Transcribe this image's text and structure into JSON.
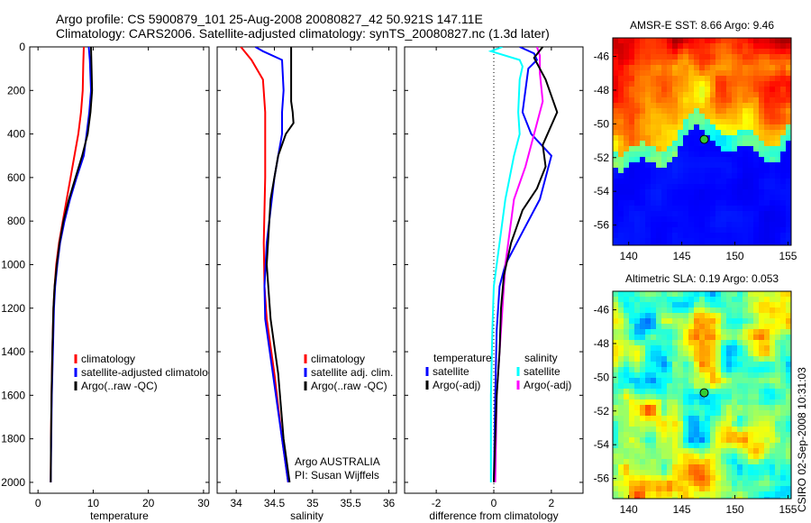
{
  "header": {
    "line1": "Argo profile: CS 5900879_101 25-Aug-2008 20080827_42 50.921S 147.11E",
    "line2": "Climatology: CARS2006. Satellite-adjusted climatology: synTS_20080827.nc (1.3d later)"
  },
  "colors": {
    "climatology": "#ff0000",
    "satellite": "#0000ff",
    "argo": "#000000",
    "temp_sat_diff": "#00ffff",
    "sal_argo_diff": "#ff00ff",
    "map_marker": "#33cc33"
  },
  "chart_data": [
    {
      "type": "line",
      "name": "temperature-panel",
      "xlabel": "temperature",
      "ylabel": "",
      "xlim": [
        -1.5,
        31
      ],
      "ylim": [
        2050,
        0
      ],
      "xticks": [
        0,
        10,
        20,
        30
      ],
      "yticks": [
        0,
        200,
        400,
        600,
        800,
        1000,
        1200,
        1400,
        1600,
        1800,
        2000
      ],
      "legend": {
        "placement": "lower-right",
        "entries": [
          "climatology",
          "satellite-adjusted climatology",
          "Argo(..raw -QC)"
        ]
      },
      "series": [
        {
          "name": "climatology",
          "color": "#ff0000",
          "points": [
            [
              8.3,
              0
            ],
            [
              8.2,
              80
            ],
            [
              8.1,
              200
            ],
            [
              7.8,
              300
            ],
            [
              7.3,
              400
            ],
            [
              6.6,
              500
            ],
            [
              5.9,
              600
            ],
            [
              5.2,
              700
            ],
            [
              4.5,
              800
            ],
            [
              3.8,
              900
            ],
            [
              3.3,
              1000
            ],
            [
              3.0,
              1100
            ],
            [
              2.8,
              1200
            ],
            [
              2.6,
              1400
            ],
            [
              2.45,
              1600
            ],
            [
              2.35,
              1800
            ],
            [
              2.3,
              2000
            ]
          ]
        },
        {
          "name": "satellite-adjusted climatology",
          "color": "#0000ff",
          "points": [
            [
              9.2,
              0
            ],
            [
              9.4,
              60
            ],
            [
              9.6,
              200
            ],
            [
              9.3,
              300
            ],
            [
              8.8,
              400
            ],
            [
              8.3,
              500
            ],
            [
              7.0,
              600
            ],
            [
              5.8,
              700
            ],
            [
              4.8,
              800
            ],
            [
              4.0,
              900
            ],
            [
              3.5,
              1000
            ],
            [
              3.1,
              1100
            ],
            [
              2.9,
              1200
            ],
            [
              2.7,
              1400
            ],
            [
              2.5,
              1600
            ],
            [
              2.4,
              1800
            ],
            [
              2.3,
              2000
            ]
          ]
        },
        {
          "name": "Argo(..raw -QC)",
          "color": "#000000",
          "points": [
            [
              9.6,
              0
            ],
            [
              9.7,
              100
            ],
            [
              9.8,
              200
            ],
            [
              9.5,
              300
            ],
            [
              9.0,
              400
            ],
            [
              8.0,
              500
            ],
            [
              6.8,
              600
            ],
            [
              5.6,
              700
            ],
            [
              4.6,
              800
            ],
            [
              3.9,
              900
            ],
            [
              3.4,
              1000
            ],
            [
              3.0,
              1100
            ],
            [
              2.8,
              1200
            ],
            [
              2.6,
              1400
            ],
            [
              2.45,
              1600
            ],
            [
              2.35,
              1800
            ],
            [
              2.3,
              2000
            ]
          ]
        }
      ]
    },
    {
      "type": "line",
      "name": "salinity-panel",
      "xlabel": "salinity",
      "ylabel": "",
      "xlim": [
        33.75,
        36.1
      ],
      "ylim": [
        2050,
        0
      ],
      "xticks": [
        34,
        34.5,
        35,
        35.5,
        36
      ],
      "legend": {
        "placement": "lower-right",
        "entries": [
          "climatology",
          "satellite adj. clim.",
          "Argo(..raw -QC)"
        ]
      },
      "annotation": [
        "Argo AUSTRALIA",
        "PI: Susan Wijffels"
      ],
      "series": [
        {
          "name": "climatology",
          "color": "#ff0000",
          "points": [
            [
              34.06,
              0
            ],
            [
              34.2,
              60
            ],
            [
              34.35,
              150
            ],
            [
              34.38,
              300
            ],
            [
              34.38,
              600
            ],
            [
              34.36,
              900
            ],
            [
              34.37,
              1100
            ],
            [
              34.4,
              1250
            ],
            [
              34.5,
              1500
            ],
            [
              34.6,
              1800
            ],
            [
              34.68,
              2000
            ]
          ]
        },
        {
          "name": "satellite adj. clim.",
          "color": "#0000ff",
          "points": [
            [
              34.25,
              0
            ],
            [
              34.35,
              20
            ],
            [
              34.6,
              60
            ],
            [
              34.62,
              200
            ],
            [
              34.6,
              300
            ],
            [
              34.6,
              400
            ],
            [
              34.5,
              600
            ],
            [
              34.4,
              900
            ],
            [
              34.37,
              1100
            ],
            [
              34.38,
              1250
            ],
            [
              34.48,
              1500
            ],
            [
              34.6,
              1800
            ],
            [
              34.68,
              2000
            ]
          ]
        },
        {
          "name": "Argo(..raw -QC)",
          "color": "#000000",
          "points": [
            [
              34.72,
              0
            ],
            [
              34.72,
              100
            ],
            [
              34.72,
              250
            ],
            [
              34.74,
              300
            ],
            [
              34.75,
              350
            ],
            [
              34.65,
              400
            ],
            [
              34.55,
              500
            ],
            [
              34.45,
              700
            ],
            [
              34.4,
              1000
            ],
            [
              34.45,
              1250
            ],
            [
              34.55,
              1500
            ],
            [
              34.62,
              1800
            ],
            [
              34.7,
              2000
            ]
          ]
        }
      ]
    },
    {
      "type": "line",
      "name": "difference-panel",
      "xlabel": "difference from climatology",
      "ylabel": "",
      "xlim": [
        -3.1,
        3.1
      ],
      "ylim": [
        2050,
        0
      ],
      "xticks": [
        -2,
        0,
        2
      ],
      "zero_line": "dotted",
      "legend": {
        "placement": "lower-right",
        "groups": [
          {
            "header": "temperature",
            "entries": [
              "satellite",
              "Argo(-adj)"
            ]
          },
          {
            "header": "salinity",
            "entries": [
              "satellite",
              "Argo(-adj)"
            ]
          }
        ]
      },
      "series": [
        {
          "name": "temperature satellite",
          "color": "#00ffff",
          "points": [
            [
              0.3,
              0
            ],
            [
              -0.1,
              20
            ],
            [
              0.9,
              60
            ],
            [
              1.0,
              90
            ],
            [
              0.9,
              150
            ],
            [
              0.85,
              300
            ],
            [
              0.9,
              400
            ],
            [
              0.7,
              500
            ],
            [
              0.55,
              600
            ],
            [
              0.4,
              700
            ],
            [
              0.2,
              900
            ],
            [
              0.0,
              1100
            ],
            [
              -0.05,
              1300
            ],
            [
              -0.1,
              1600
            ],
            [
              -0.1,
              2000
            ]
          ]
        },
        {
          "name": "temperature Argo(-adj)",
          "color": "#0000ff",
          "points": [
            [
              0.9,
              0
            ],
            [
              1.4,
              30
            ],
            [
              1.5,
              60
            ],
            [
              1.2,
              100
            ],
            [
              1.0,
              300
            ],
            [
              1.3,
              400
            ],
            [
              2.0,
              500
            ],
            [
              1.6,
              700
            ],
            [
              1.0,
              850
            ],
            [
              0.4,
              1000
            ],
            [
              0.2,
              1100
            ],
            [
              0.1,
              1300
            ],
            [
              0.05,
              1600
            ],
            [
              0.0,
              2000
            ]
          ]
        },
        {
          "name": "salinity satellite",
          "color": "#ff00ff",
          "points": [
            [
              1.5,
              0
            ],
            [
              1.6,
              40
            ],
            [
              1.6,
              120
            ],
            [
              1.7,
              250
            ],
            [
              1.4,
              400
            ],
            [
              1.1,
              550
            ],
            [
              0.7,
              700
            ],
            [
              0.6,
              800
            ],
            [
              0.4,
              1000
            ],
            [
              0.3,
              1200
            ],
            [
              0.2,
              1400
            ],
            [
              0.1,
              1600
            ],
            [
              0.05,
              2000
            ]
          ]
        },
        {
          "name": "salinity Argo(-adj)",
          "color": "#000000",
          "points": [
            [
              1.7,
              0
            ],
            [
              1.4,
              50
            ],
            [
              1.8,
              150
            ],
            [
              2.2,
              300
            ],
            [
              1.7,
              450
            ],
            [
              1.8,
              550
            ],
            [
              1.5,
              650
            ],
            [
              1.0,
              750
            ],
            [
              0.6,
              900
            ],
            [
              0.35,
              1050
            ],
            [
              0.25,
              1200
            ],
            [
              0.2,
              1400
            ],
            [
              0.1,
              1600
            ],
            [
              0.05,
              1800
            ],
            [
              0.0,
              2000
            ]
          ]
        }
      ]
    },
    {
      "type": "heatmap",
      "name": "sst-map",
      "title": "AMSR-E SST: 8.66 Argo: 9.46",
      "xlim": [
        138.5,
        155.3
      ],
      "ylim": [
        -57.2,
        -44.9
      ],
      "xticks": [
        140,
        145,
        150,
        155
      ],
      "yticks": [
        -46,
        -48,
        -50,
        -52,
        -54,
        -56
      ],
      "marker": {
        "lon": 147.11,
        "lat": -50.921
      }
    },
    {
      "type": "heatmap",
      "name": "sla-map",
      "title": "Altimetric SLA: 0.19 Argo: 0.053",
      "xlim": [
        138.5,
        155.3
      ],
      "ylim": [
        -57.2,
        -44.9
      ],
      "xticks": [
        140,
        145,
        150,
        155
      ],
      "yticks": [
        -46,
        -48,
        -50,
        -52,
        -54,
        -56
      ],
      "marker": {
        "lon": 147.11,
        "lat": -50.921
      }
    }
  ],
  "footer": {
    "stamp": "CSIRO 02-Sep-2008 10:31:03"
  }
}
